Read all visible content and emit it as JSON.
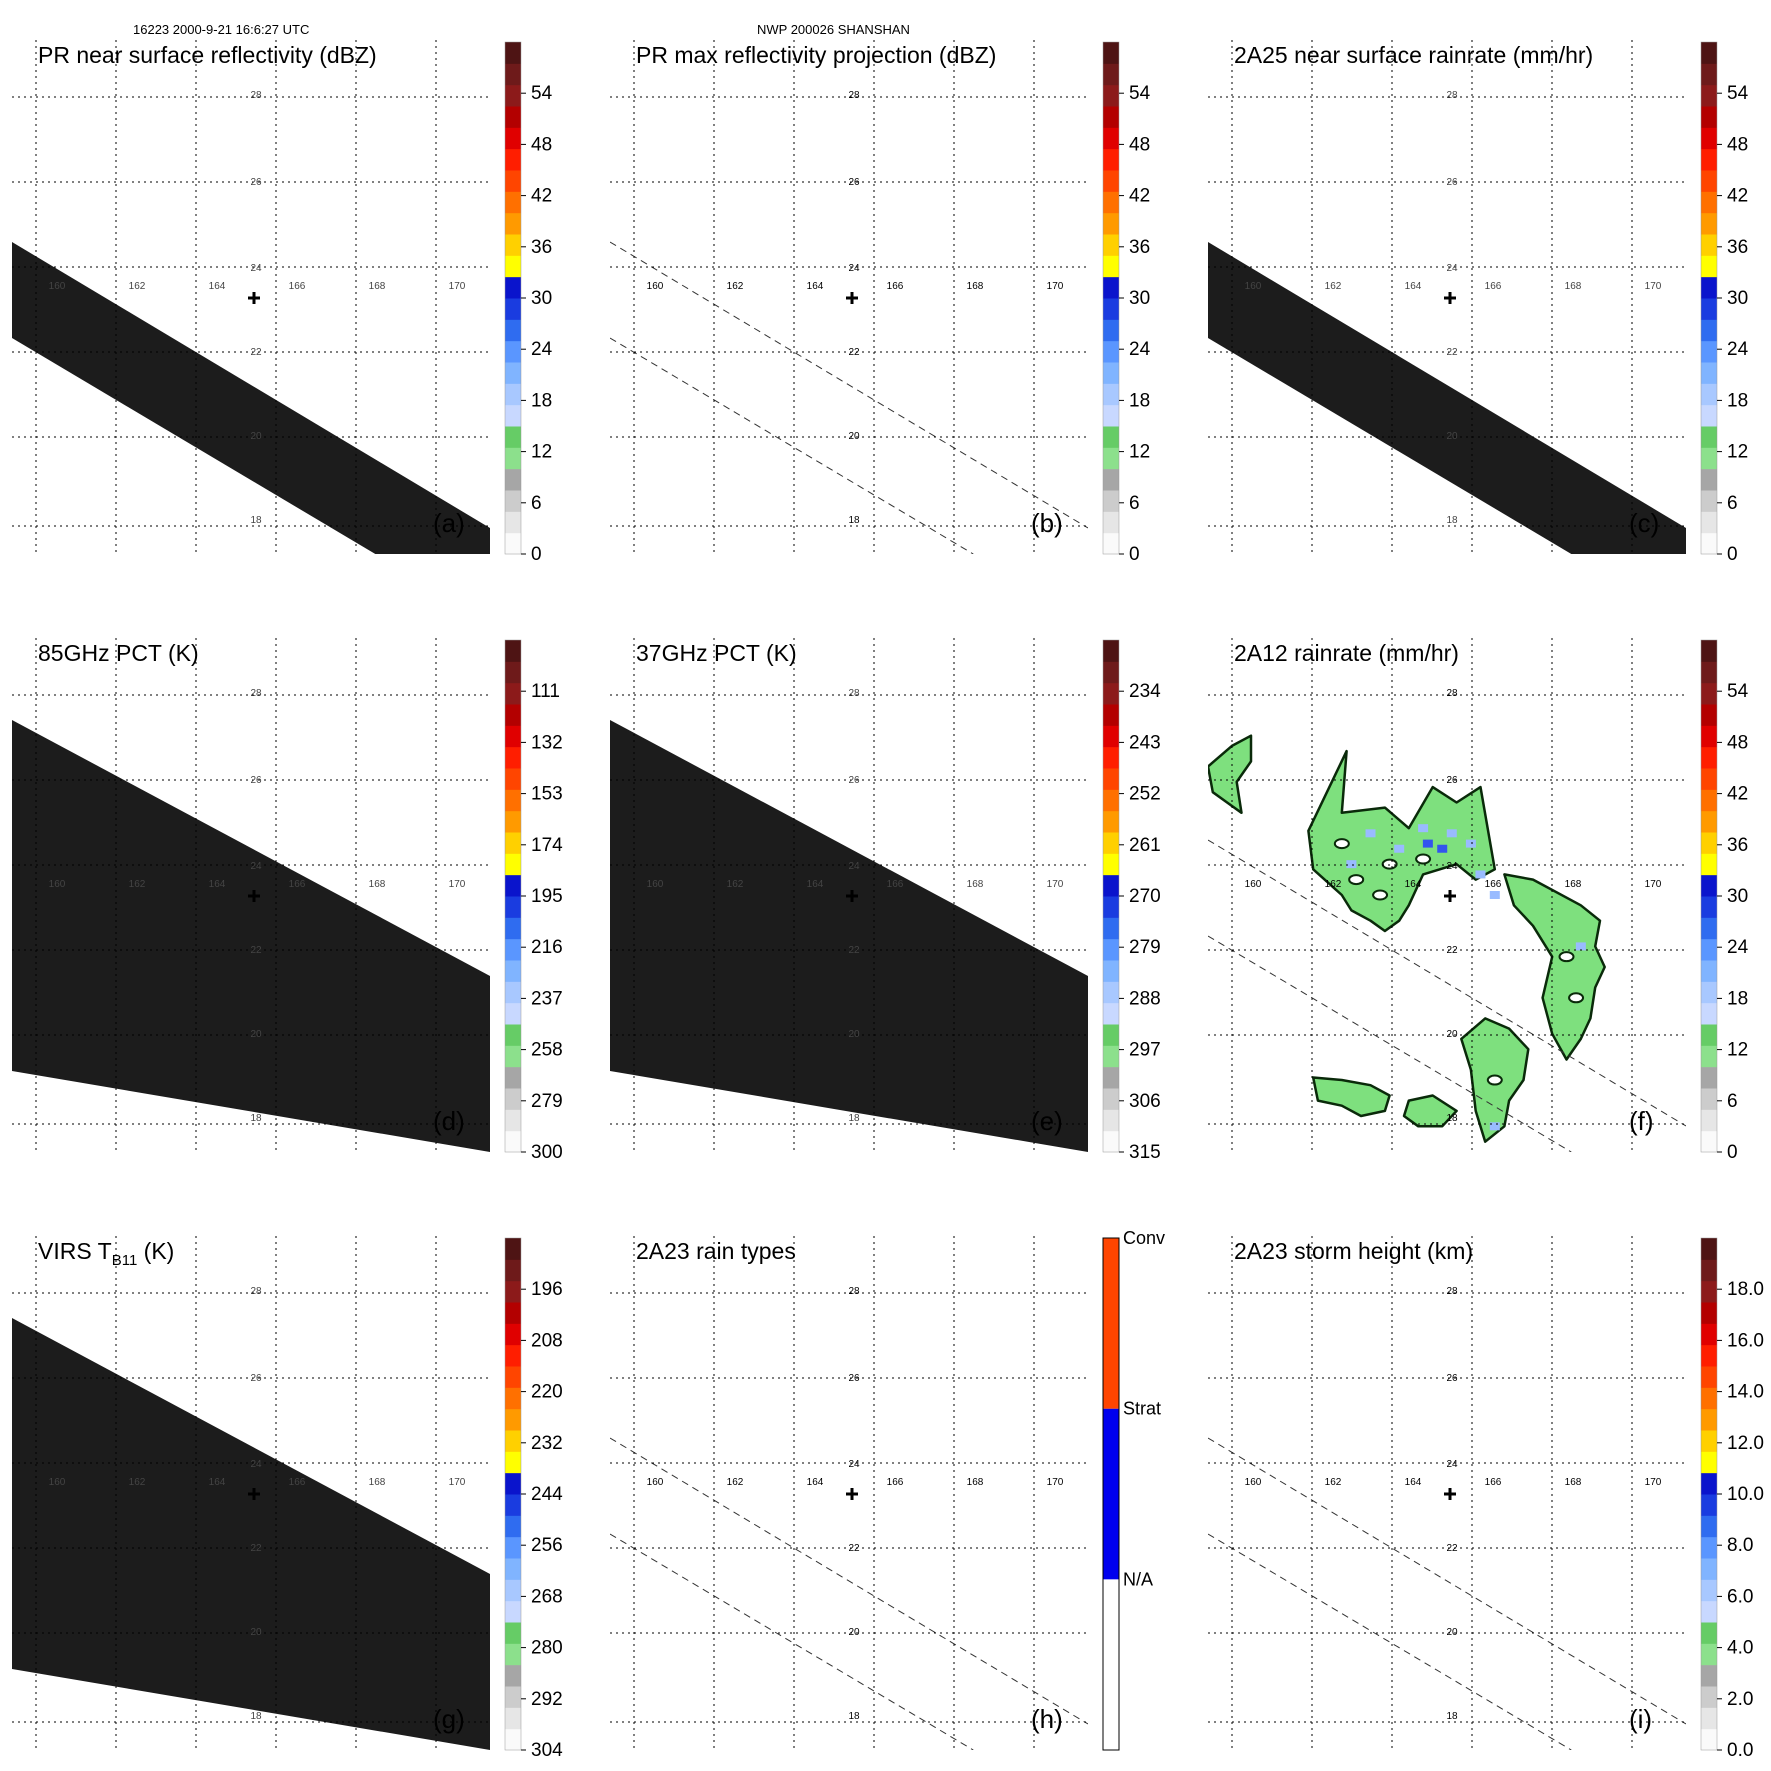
{
  "header": {
    "left": "16223 2000-9-21 16:6:27 UTC",
    "center": "NWP 200026 SHANSHAN"
  },
  "colors": {
    "swath": "#1c1c1c",
    "rain_fill": "#7ee07e",
    "rain_edge": "#0a2a0a",
    "light_blue": "#99bbff",
    "mid_blue": "#3355ee"
  },
  "palette": [
    "#fafafa",
    "#e6e6e6",
    "#cccccc",
    "#a6a6a6",
    "#8ce08c",
    "#66cc66",
    "#c8d8ff",
    "#a8c8ff",
    "#80b4ff",
    "#5a96ff",
    "#2f6cf0",
    "#1a3ce0",
    "#0a14cc",
    "#ffff00",
    "#ffd000",
    "#ff9a00",
    "#ff7000",
    "#ff4500",
    "#ff1e00",
    "#e00000",
    "#b30000",
    "#8c1a1a",
    "#6e1a1a",
    "#4e1414"
  ],
  "rain_type_colors": [
    "#ffffff",
    "#0000ee",
    "#ff4500"
  ],
  "map": {
    "lon_labels": [
      "160",
      "162",
      "164",
      "166",
      "168",
      "170"
    ],
    "lat_labels": [
      "18",
      "20",
      "22",
      "24",
      "26",
      "28"
    ]
  },
  "chart_data": [
    {
      "id": "a",
      "type": "heatmap",
      "title": "PR near surface reflectivity (dBZ)",
      "label": "(a)",
      "colorbar": {
        "kind": "continuous",
        "range": [
          0,
          60
        ],
        "ticks": [
          "0",
          "6",
          "12",
          "18",
          "24",
          "30",
          "36",
          "42",
          "48",
          "54"
        ]
      },
      "swath": "narrow",
      "dashed_edges": false
    },
    {
      "id": "b",
      "type": "heatmap",
      "title": "PR max reflectivity projection (dBZ)",
      "label": "(b)",
      "colorbar": {
        "kind": "continuous",
        "range": [
          0,
          60
        ],
        "ticks": [
          "0",
          "6",
          "12",
          "18",
          "24",
          "30",
          "36",
          "42",
          "48",
          "54"
        ]
      },
      "swath": "none",
      "dashed_edges": true
    },
    {
      "id": "c",
      "type": "heatmap",
      "title": "2A25 near surface rainrate (mm/hr)",
      "label": "(c)",
      "colorbar": {
        "kind": "continuous",
        "range": [
          0,
          60
        ],
        "ticks": [
          "0",
          "6",
          "12",
          "18",
          "24",
          "30",
          "36",
          "42",
          "48",
          "54"
        ]
      },
      "swath": "narrow",
      "dashed_edges": false
    },
    {
      "id": "d",
      "type": "heatmap",
      "title": "85GHz PCT (K)",
      "label": "(d)",
      "colorbar": {
        "kind": "continuous",
        "reversed": true,
        "range": [
          300,
          90
        ],
        "ticks": [
          "300",
          "279",
          "258",
          "237",
          "216",
          "195",
          "174",
          "153",
          "132",
          "111"
        ]
      },
      "swath": "wide",
      "dashed_edges": false
    },
    {
      "id": "e",
      "type": "heatmap",
      "title": "37GHz PCT (K)",
      "label": "(e)",
      "colorbar": {
        "kind": "continuous",
        "reversed": true,
        "range": [
          315,
          225
        ],
        "ticks": [
          "315",
          "306",
          "297",
          "288",
          "279",
          "270",
          "261",
          "252",
          "243",
          "234"
        ]
      },
      "swath": "wide",
      "dashed_edges": false
    },
    {
      "id": "f",
      "type": "heatmap",
      "title": "2A12 rainrate (mm/hr)",
      "label": "(f)",
      "colorbar": {
        "kind": "continuous",
        "range": [
          0,
          60
        ],
        "ticks": [
          "0",
          "6",
          "12",
          "18",
          "24",
          "30",
          "36",
          "42",
          "48",
          "54"
        ]
      },
      "swath": "rain",
      "dashed_edges": true
    },
    {
      "id": "g",
      "type": "heatmap",
      "title_main": "VIRS T",
      "title_sub": "B11",
      "title_tail": " (K)",
      "label": "(g)",
      "colorbar": {
        "kind": "continuous",
        "reversed": true,
        "range": [
          304,
          184
        ],
        "ticks": [
          "304",
          "292",
          "280",
          "268",
          "256",
          "244",
          "232",
          "220",
          "208",
          "196"
        ]
      },
      "swath": "wide",
      "dashed_edges": false
    },
    {
      "id": "h",
      "type": "heatmap",
      "title": "2A23 rain types",
      "label": "(h)",
      "colorbar": {
        "kind": "categorical",
        "categories": [
          "N/A",
          "Strat",
          "Conv"
        ]
      },
      "swath": "none",
      "dashed_edges": true
    },
    {
      "id": "i",
      "type": "heatmap",
      "title": "2A23 storm height (km)",
      "label": "(i)",
      "colorbar": {
        "kind": "continuous",
        "range": [
          0,
          20
        ],
        "ticks": [
          "0.0",
          "2.0",
          "4.0",
          "6.0",
          "8.0",
          "10.0",
          "12.0",
          "14.0",
          "16.0",
          "18.0"
        ]
      },
      "swath": "none",
      "dashed_edges": true
    }
  ]
}
